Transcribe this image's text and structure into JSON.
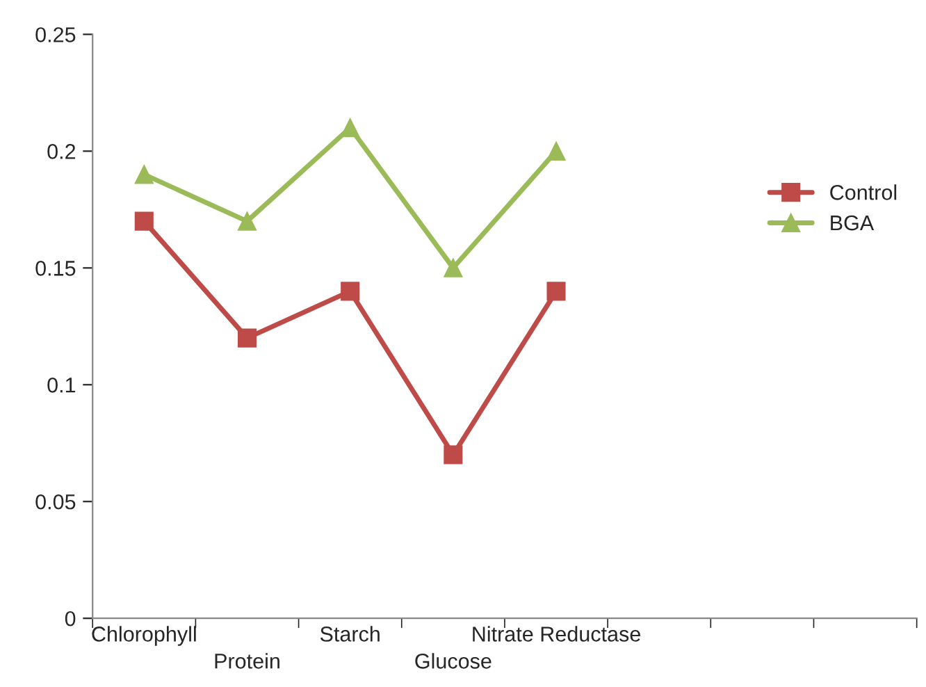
{
  "chart_data": {
    "type": "line",
    "categories": [
      "Chlorophyll",
      "Protein",
      "Starch",
      "Glucose",
      "Nitrate Reductase",
      null,
      null,
      null
    ],
    "series": [
      {
        "name": "Control",
        "color": "#be4b48",
        "marker": "square",
        "values": [
          0.17,
          0.12,
          0.14,
          0.07,
          0.14,
          null,
          null,
          null
        ]
      },
      {
        "name": "BGA",
        "color": "#9bbb59",
        "marker": "triangle",
        "values": [
          0.19,
          0.17,
          0.21,
          0.15,
          0.2,
          null,
          null,
          null
        ]
      }
    ],
    "ylim": [
      0,
      0.25
    ],
    "yticks": [
      0,
      0.05,
      0.1,
      0.15,
      0.2,
      0.25
    ],
    "grid": false,
    "legend": "right",
    "line_style": "solid"
  }
}
